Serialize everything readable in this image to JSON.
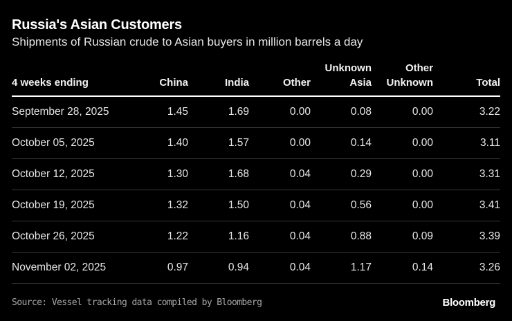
{
  "chart_data": {
    "type": "table",
    "title": "Russia's Asian Customers",
    "subtitle": "Shipments of Russian crude to Asian buyers in million barrels a day",
    "columns": [
      "4 weeks ending",
      "China",
      "India",
      "Other",
      "Unknown Asia",
      "Other Unknown",
      "Total"
    ],
    "header_lines": [
      [
        "4 weeks ending"
      ],
      [
        "China"
      ],
      [
        "India"
      ],
      [
        "Other"
      ],
      [
        "Unknown",
        "Asia"
      ],
      [
        "Other",
        "Unknown"
      ],
      [
        "Total"
      ]
    ],
    "rows": [
      [
        "September 28, 2025",
        "1.45",
        "1.69",
        "0.00",
        "0.08",
        "0.00",
        "3.22"
      ],
      [
        "October 05, 2025",
        "1.40",
        "1.57",
        "0.00",
        "0.14",
        "0.00",
        "3.11"
      ],
      [
        "October 12, 2025",
        "1.30",
        "1.68",
        "0.04",
        "0.29",
        "0.00",
        "3.31"
      ],
      [
        "October 19, 2025",
        "1.32",
        "1.50",
        "0.04",
        "0.56",
        "0.00",
        "3.41"
      ],
      [
        "October 26, 2025",
        "1.22",
        "1.16",
        "0.04",
        "0.88",
        "0.09",
        "3.39"
      ],
      [
        "November 02, 2025",
        "0.97",
        "0.94",
        "0.04",
        "1.17",
        "0.14",
        "3.26"
      ]
    ],
    "source": "Source: Vessel tracking data compiled by Bloomberg",
    "logo": "Bloomberg"
  },
  "colors": {
    "background": "#000000",
    "text": "#ffffff",
    "source": "#a8a8a8"
  }
}
